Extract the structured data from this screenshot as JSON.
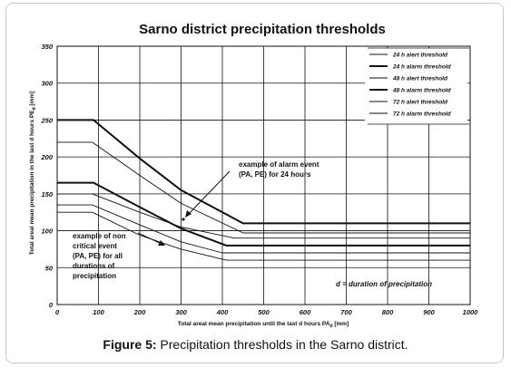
{
  "caption": {
    "label": "Figure 5:",
    "text": " Precipitation thresholds in the Sarno district."
  },
  "chart_data": {
    "type": "line",
    "title": "Sarno district precipitation thresholds",
    "xlabel": "Total areal mean precipitation until the last d hours PA",
    "xlabel_sub": "d",
    "xlabel_unit": " [mm]",
    "ylabel": "Total areal mean precipitation in the last d hours  PE",
    "ylabel_sub": "d",
    "ylabel_unit": " [mm]",
    "xlim": [
      0,
      1000
    ],
    "ylim": [
      0,
      350
    ],
    "xticks": [
      0,
      100,
      200,
      300,
      400,
      500,
      600,
      700,
      800,
      900,
      1000
    ],
    "yticks": [
      0,
      50,
      100,
      150,
      200,
      250,
      300,
      350
    ],
    "grid": true,
    "legend_position": "top-right",
    "series": [
      {
        "name": "24 h alert threshold",
        "style": "thin",
        "points": [
          [
            0,
            220
          ],
          [
            85,
            220
          ],
          [
            200,
            175
          ],
          [
            300,
            137
          ],
          [
            450,
            97
          ],
          [
            1000,
            97
          ]
        ]
      },
      {
        "name": "24 h alarm threshold",
        "style": "thick",
        "points": [
          [
            0,
            250
          ],
          [
            88,
            250
          ],
          [
            200,
            198
          ],
          [
            300,
            155
          ],
          [
            450,
            110
          ],
          [
            1000,
            110
          ]
        ]
      },
      {
        "name": "48 h alert threshold",
        "style": "thin",
        "points": [
          [
            0,
            150
          ],
          [
            85,
            150
          ],
          [
            200,
            125
          ],
          [
            300,
            105
          ],
          [
            430,
            90
          ],
          [
            1000,
            90
          ]
        ]
      },
      {
        "name": "48 h alarm threshold",
        "style": "thick",
        "points": [
          [
            0,
            165
          ],
          [
            88,
            165
          ],
          [
            200,
            132
          ],
          [
            300,
            103
          ],
          [
            410,
            80
          ],
          [
            1000,
            80
          ]
        ]
      },
      {
        "name": "72 h alert threshold",
        "style": "thin",
        "points": [
          [
            0,
            135
          ],
          [
            85,
            135
          ],
          [
            200,
            108
          ],
          [
            300,
            85
          ],
          [
            400,
            70
          ],
          [
            1000,
            70
          ]
        ]
      },
      {
        "name": "72 h alarm threshold",
        "style": "thin",
        "points": [
          [
            0,
            125
          ],
          [
            85,
            125
          ],
          [
            200,
            94
          ],
          [
            300,
            75
          ],
          [
            410,
            60
          ],
          [
            1000,
            60
          ]
        ]
      }
    ],
    "annotations": [
      {
        "lines": [
          "example of alarm event",
          "(PA, PE) for 24 hours"
        ]
      },
      {
        "lines": [
          "example of non",
          "critical event",
          "(PA, PE) for all",
          "durations of",
          "precipitation"
        ]
      },
      {
        "lines": [
          "d = duration of precipitation"
        ]
      }
    ]
  }
}
